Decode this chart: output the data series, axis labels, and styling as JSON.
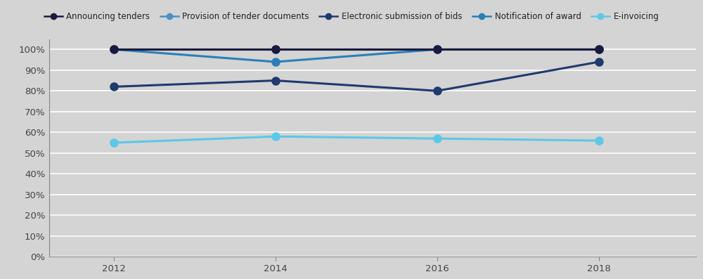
{
  "years": [
    2012,
    2014,
    2016,
    2018
  ],
  "series": [
    {
      "label": "Announcing tenders",
      "values": [
        100,
        100,
        100,
        100
      ],
      "color": "#1a1a3e",
      "marker": "o",
      "linewidth": 2.2,
      "markersize": 8,
      "zorder": 5
    },
    {
      "label": "Provision of tender documents",
      "values": [
        100,
        100,
        100,
        100
      ],
      "color": "#4a90c4",
      "marker": "o",
      "linewidth": 2.2,
      "markersize": 8,
      "zorder": 4
    },
    {
      "label": "Electronic submission of bids",
      "values": [
        82,
        85,
        80,
        94
      ],
      "color": "#1f3a6e",
      "marker": "o",
      "linewidth": 2.2,
      "markersize": 8,
      "zorder": 3
    },
    {
      "label": "Notification of award",
      "values": [
        100,
        94,
        100,
        100
      ],
      "color": "#2980b9",
      "marker": "o",
      "linewidth": 2.2,
      "markersize": 8,
      "zorder": 2
    },
    {
      "label": "E-invoicing",
      "values": [
        55,
        58,
        57,
        56
      ],
      "color": "#5bc8e8",
      "marker": "o",
      "linewidth": 2.2,
      "markersize": 8,
      "zorder": 1
    }
  ],
  "background_color": "#d4d4d4",
  "plot_background": "#d4d4d4",
  "ylim": [
    0,
    105
  ],
  "yticks": [
    0,
    10,
    20,
    30,
    40,
    50,
    60,
    70,
    80,
    90,
    100
  ],
  "yticklabels": [
    "0%",
    "10%",
    "20%",
    "30%",
    "40%",
    "50%",
    "60%",
    "70%",
    "80%",
    "90%",
    "100%"
  ],
  "xticks": [
    2012,
    2014,
    2016,
    2018
  ],
  "figsize": [
    10.0,
    3.97
  ],
  "dpi": 100,
  "grid_color": "#ffffff",
  "grid_linewidth": 1.2
}
